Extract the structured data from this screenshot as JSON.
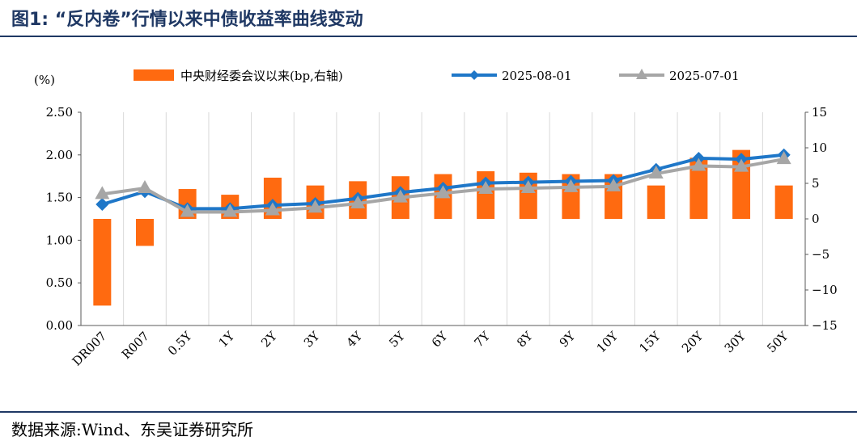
{
  "figure": {
    "title": "图1:  “反内卷”行情以来中债收益率曲线变动",
    "source": "数据来源:Wind、东吴证券研究所"
  },
  "chart_data": {
    "type": "bar+line",
    "title": "“反内卷”行情以来中债收益率曲线变动",
    "left_axis_unit": "(%)",
    "left_axis": {
      "range": [
        0,
        2.5
      ],
      "ticks": [
        "2.50",
        "2.00",
        "1.50",
        "1.00",
        "0.50",
        "0.00"
      ],
      "tick_values": [
        2.5,
        2.0,
        1.5,
        1.0,
        0.5,
        0.0
      ]
    },
    "right_axis": {
      "range": [
        -15,
        15
      ],
      "ticks": [
        "15",
        "10",
        "5",
        "0",
        "−5",
        "−10",
        "−15"
      ],
      "tick_values": [
        15,
        10,
        5,
        0,
        -5,
        -10,
        -15
      ]
    },
    "categories": [
      "DR007",
      "R007",
      "0.5Y",
      "1Y",
      "2Y",
      "3Y",
      "4Y",
      "5Y",
      "6Y",
      "7Y",
      "8Y",
      "9Y",
      "10Y",
      "15Y",
      "20Y",
      "30Y",
      "50Y"
    ],
    "series": [
      {
        "name": "中央财经委会议以来(bp,右轴)",
        "kind": "bar",
        "axis": "right",
        "color": "#ff6a10",
        "values": [
          -12.2,
          -3.8,
          4.2,
          3.4,
          5.8,
          4.7,
          5.3,
          6.0,
          6.3,
          6.7,
          6.5,
          6.3,
          6.3,
          4.7,
          8.6,
          9.7,
          4.7
        ]
      },
      {
        "name": "2025-08-01",
        "kind": "line",
        "axis": "left",
        "color": "#1f77c8",
        "marker": "diamond",
        "values": [
          1.42,
          1.57,
          1.37,
          1.37,
          1.41,
          1.43,
          1.49,
          1.56,
          1.61,
          1.67,
          1.68,
          1.69,
          1.7,
          1.83,
          1.96,
          1.95,
          2.0
        ]
      },
      {
        "name": "2025-07-01",
        "kind": "line",
        "axis": "left",
        "color": "#a6a6a6",
        "marker": "triangle",
        "values": [
          1.54,
          1.61,
          1.33,
          1.33,
          1.35,
          1.38,
          1.43,
          1.5,
          1.55,
          1.6,
          1.61,
          1.62,
          1.63,
          1.78,
          1.87,
          1.86,
          1.95
        ]
      }
    ],
    "grid": "vertical",
    "legend_position": "top"
  }
}
